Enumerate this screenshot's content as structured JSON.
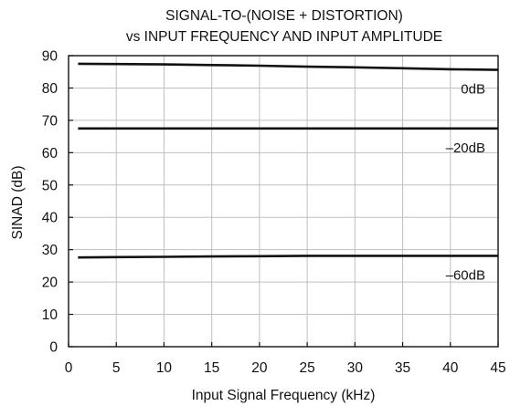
{
  "chart_data": {
    "type": "line",
    "title_lines": [
      "SIGNAL-TO-(NOISE + DISTORTION)",
      "vs INPUT FREQUENCY AND INPUT AMPLITUDE"
    ],
    "xlabel": "Input Signal Frequency (kHz)",
    "ylabel": "SINAD (dB)",
    "xlim": [
      0,
      45
    ],
    "ylim": [
      0,
      90
    ],
    "x_ticks": [
      0,
      5,
      10,
      15,
      20,
      25,
      30,
      35,
      40,
      45
    ],
    "y_ticks": [
      0,
      10,
      20,
      30,
      40,
      50,
      60,
      70,
      80,
      90
    ],
    "grid": true,
    "series": [
      {
        "name": "0dB",
        "x": [
          1,
          5,
          10,
          15,
          20,
          25,
          30,
          35,
          40,
          45
        ],
        "y": [
          87.5,
          87.4,
          87.3,
          87.1,
          86.9,
          86.6,
          86.4,
          86.1,
          85.8,
          85.6
        ]
      },
      {
        "name": "–20dB",
        "x": [
          1,
          5,
          10,
          15,
          20,
          25,
          30,
          35,
          40,
          45
        ],
        "y": [
          67.5,
          67.5,
          67.5,
          67.5,
          67.5,
          67.5,
          67.5,
          67.5,
          67.5,
          67.5
        ]
      },
      {
        "name": "–60dB",
        "x": [
          1,
          5,
          10,
          15,
          20,
          25,
          30,
          35,
          40,
          45
        ],
        "y": [
          27.6,
          27.7,
          27.8,
          27.9,
          28.0,
          28.1,
          28.1,
          28.1,
          28.1,
          28.1
        ]
      }
    ]
  }
}
